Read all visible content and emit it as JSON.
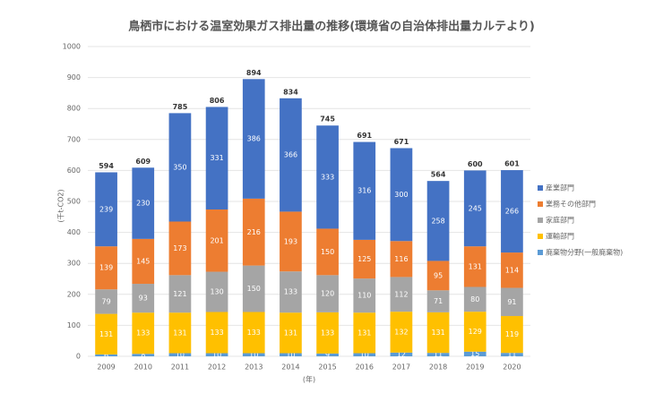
{
  "chart_data": {
    "type": "stacked_bar",
    "title": "鳥栖市における温室効果ガス排出量の推移(環境省の自治体排出量カルテより)",
    "y_label": "(千t-CO2)",
    "x_label": "(年)",
    "categories": [
      "2009",
      "2010",
      "2011",
      "2012",
      "2013",
      "2014",
      "2015",
      "2016",
      "2017",
      "2018",
      "2019",
      "2020"
    ],
    "series": [
      {
        "name": "産業部門",
        "color": "#4472c4",
        "values": [
          239,
          230,
          350,
          331,
          386,
          366,
          333,
          316,
          300,
          258,
          245,
          266
        ]
      },
      {
        "name": "業務その他部門",
        "color": "#ed7d31",
        "values": [
          139,
          145,
          173,
          201,
          216,
          193,
          150,
          125,
          116,
          95,
          131,
          114
        ]
      },
      {
        "name": "家庭部門",
        "color": "#a5a5a5",
        "values": [
          79,
          93,
          121,
          130,
          150,
          133,
          120,
          110,
          112,
          71,
          80,
          91
        ]
      },
      {
        "name": "運輸部門",
        "color": "#ffc000",
        "values": [
          131,
          133,
          131,
          133,
          133,
          131,
          133,
          131,
          132,
          131,
          129,
          119
        ]
      },
      {
        "name": "廃棄物分野(一般廃棄物)",
        "color": "#5b9bd5",
        "values": [
          6,
          8,
          10,
          10,
          10,
          10,
          9,
          10,
          12,
          11,
          15,
          11
        ]
      }
    ],
    "totals": [
      594,
      609,
      785,
      806,
      894,
      834,
      745,
      691,
      671,
      564,
      600,
      601
    ],
    "ylim": [
      0,
      1000
    ],
    "yticks": [
      0,
      100,
      200,
      300,
      400,
      500,
      600,
      700,
      800,
      900,
      1000
    ],
    "grid": true
  }
}
